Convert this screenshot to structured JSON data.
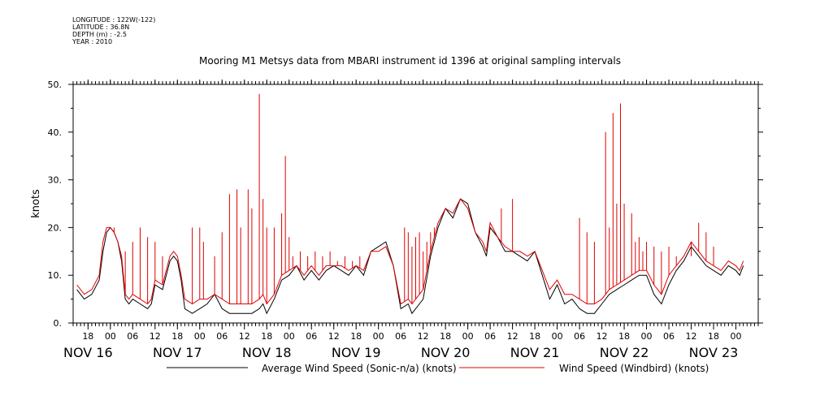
{
  "meta": {
    "longitude": "LONGITUDE : 122W(-122)",
    "latitude": "LATITUDE : 36.8N",
    "depth": "DEPTH (m) : -2.5",
    "year": "YEAR : 2010"
  },
  "chart_data": {
    "type": "line",
    "title": "Mooring M1 Metsys data from MBARI instrument id 1396 at original sampling intervals",
    "ylabel": "knots",
    "xlabel": "",
    "ylim": [
      0,
      50
    ],
    "yticks": [
      0,
      10,
      20,
      30,
      40,
      50
    ],
    "ytick_labels": [
      "0.",
      "10.",
      "20.",
      "30.",
      "40.",
      "50."
    ],
    "xlim_hours": [
      -10,
      174
    ],
    "x_units": "hours after 2010-11-16 00:00",
    "hour_ticks": [
      {
        "h": -6,
        "label": "18"
      },
      {
        "h": 0,
        "label": "00"
      },
      {
        "h": 6,
        "label": "06"
      },
      {
        "h": 12,
        "label": "12"
      },
      {
        "h": 18,
        "label": "18"
      },
      {
        "h": 24,
        "label": "00"
      },
      {
        "h": 30,
        "label": "06"
      },
      {
        "h": 36,
        "label": "12"
      },
      {
        "h": 42,
        "label": "18"
      },
      {
        "h": 48,
        "label": "00"
      },
      {
        "h": 54,
        "label": "06"
      },
      {
        "h": 60,
        "label": "12"
      },
      {
        "h": 66,
        "label": "18"
      },
      {
        "h": 72,
        "label": "00"
      },
      {
        "h": 78,
        "label": "06"
      },
      {
        "h": 84,
        "label": "12"
      },
      {
        "h": 90,
        "label": "18"
      },
      {
        "h": 96,
        "label": "00"
      },
      {
        "h": 102,
        "label": "06"
      },
      {
        "h": 108,
        "label": "12"
      },
      {
        "h": 114,
        "label": "18"
      },
      {
        "h": 120,
        "label": "00"
      },
      {
        "h": 126,
        "label": "06"
      },
      {
        "h": 132,
        "label": "12"
      },
      {
        "h": 138,
        "label": "18"
      },
      {
        "h": 144,
        "label": "00"
      },
      {
        "h": 150,
        "label": "06"
      },
      {
        "h": 156,
        "label": "12"
      },
      {
        "h": 162,
        "label": "18"
      },
      {
        "h": 168,
        "label": "00"
      }
    ],
    "day_labels": [
      {
        "h": -6,
        "label": "NOV 16"
      },
      {
        "h": 18,
        "label": "NOV 17"
      },
      {
        "h": 42,
        "label": "NOV 18"
      },
      {
        "h": 66,
        "label": "NOV 19"
      },
      {
        "h": 90,
        "label": "NOV 20"
      },
      {
        "h": 114,
        "label": "NOV 21"
      },
      {
        "h": 138,
        "label": "NOV 22"
      },
      {
        "h": 162,
        "label": "NOV 23"
      }
    ],
    "series": [
      {
        "name": "Average Wind Speed (Sonic-n/a) (knots)",
        "color": "#000000",
        "x": [
          -9,
          -7,
          -5,
          -3,
          -2,
          -1,
          0,
          1,
          2,
          3,
          4,
          5,
          6,
          8,
          10,
          11,
          12,
          14,
          16,
          17,
          18,
          19,
          20,
          22,
          24,
          26,
          28,
          30,
          32,
          34,
          36,
          38,
          40,
          41,
          42,
          44,
          46,
          48,
          50,
          52,
          54,
          56,
          58,
          60,
          62,
          64,
          66,
          68,
          70,
          72,
          74,
          76,
          78,
          80,
          81,
          82,
          83,
          84,
          86,
          88,
          90,
          92,
          94,
          96,
          98,
          100,
          101,
          102,
          104,
          106,
          108,
          110,
          112,
          114,
          116,
          118,
          120,
          122,
          124,
          126,
          128,
          130,
          132,
          134,
          136,
          138,
          140,
          142,
          144,
          146,
          148,
          150,
          152,
          154,
          156,
          158,
          160,
          162,
          164,
          166,
          168,
          169,
          170
        ],
        "y": [
          7,
          5,
          6,
          9,
          15,
          19,
          20,
          19,
          17,
          13,
          5,
          4,
          5,
          4,
          3,
          4,
          8,
          7,
          13,
          14,
          13,
          9,
          3,
          2,
          3,
          4,
          6,
          3,
          2,
          2,
          2,
          2,
          3,
          4,
          2,
          5,
          9,
          10,
          12,
          9,
          11,
          9,
          11,
          12,
          11,
          10,
          12,
          10,
          15,
          16,
          17,
          12,
          3,
          4,
          2,
          3,
          4,
          5,
          14,
          20,
          24,
          22,
          26,
          25,
          19,
          16,
          14,
          20,
          18,
          15,
          15,
          14,
          13,
          15,
          10,
          5,
          8,
          4,
          5,
          3,
          2,
          2,
          4,
          6,
          7,
          8,
          9,
          10,
          10,
          6,
          4,
          8,
          11,
          13,
          16,
          14,
          12,
          11,
          10,
          12,
          11,
          10,
          12
        ]
      },
      {
        "name": "Wind Speed (Windbird) (knots)",
        "color": "#e00000",
        "x": [
          -9,
          -7,
          -5,
          -3,
          -2,
          -1,
          0,
          1,
          2,
          3,
          4,
          5,
          6,
          8,
          10,
          11,
          12,
          14,
          16,
          17,
          18,
          19,
          20,
          22,
          24,
          26,
          28,
          30,
          32,
          34,
          36,
          38,
          40,
          41,
          42,
          44,
          46,
          48,
          50,
          52,
          54,
          56,
          58,
          60,
          62,
          64,
          66,
          68,
          70,
          72,
          74,
          76,
          78,
          80,
          81,
          82,
          83,
          84,
          86,
          88,
          90,
          92,
          94,
          96,
          98,
          100,
          101,
          102,
          104,
          106,
          108,
          110,
          112,
          114,
          116,
          118,
          120,
          122,
          124,
          126,
          128,
          130,
          132,
          134,
          136,
          138,
          140,
          142,
          144,
          146,
          148,
          150,
          152,
          154,
          156,
          158,
          160,
          162,
          164,
          166,
          168,
          169,
          170
        ],
        "y": [
          8,
          6,
          7,
          10,
          17,
          20,
          20,
          19,
          17,
          14,
          6,
          5,
          6,
          5,
          4,
          5,
          9,
          8,
          14,
          15,
          14,
          10,
          5,
          4,
          5,
          5,
          6,
          5,
          4,
          4,
          4,
          4,
          5,
          6,
          4,
          6,
          10,
          11,
          12,
          10,
          12,
          10,
          12,
          12,
          12,
          11,
          12,
          11,
          15,
          15,
          16,
          12,
          4,
          5,
          4,
          5,
          6,
          7,
          15,
          21,
          24,
          23,
          26,
          24,
          19,
          17,
          15,
          21,
          18,
          16,
          15,
          15,
          14,
          15,
          11,
          7,
          9,
          6,
          6,
          5,
          4,
          4,
          5,
          7,
          8,
          9,
          10,
          11,
          11,
          8,
          6,
          10,
          12,
          14,
          17,
          15,
          13,
          12,
          11,
          13,
          12,
          11,
          13
        ],
        "spikes": [
          {
            "x": 1,
            "y": 20
          },
          {
            "x": 4,
            "y": 15
          },
          {
            "x": 6,
            "y": 17
          },
          {
            "x": 8,
            "y": 20
          },
          {
            "x": 10,
            "y": 18
          },
          {
            "x": 12,
            "y": 17
          },
          {
            "x": 14,
            "y": 14
          },
          {
            "x": 22,
            "y": 20
          },
          {
            "x": 24,
            "y": 20
          },
          {
            "x": 25,
            "y": 17
          },
          {
            "x": 28,
            "y": 14
          },
          {
            "x": 30,
            "y": 19
          },
          {
            "x": 32,
            "y": 27
          },
          {
            "x": 34,
            "y": 28
          },
          {
            "x": 35,
            "y": 20
          },
          {
            "x": 37,
            "y": 28
          },
          {
            "x": 38,
            "y": 24
          },
          {
            "x": 40,
            "y": 48
          },
          {
            "x": 41,
            "y": 26
          },
          {
            "x": 42,
            "y": 20
          },
          {
            "x": 44,
            "y": 20
          },
          {
            "x": 46,
            "y": 23
          },
          {
            "x": 47,
            "y": 35
          },
          {
            "x": 48,
            "y": 18
          },
          {
            "x": 49,
            "y": 14
          },
          {
            "x": 51,
            "y": 15
          },
          {
            "x": 53,
            "y": 14
          },
          {
            "x": 55,
            "y": 15
          },
          {
            "x": 57,
            "y": 14
          },
          {
            "x": 59,
            "y": 15
          },
          {
            "x": 61,
            "y": 13
          },
          {
            "x": 63,
            "y": 14
          },
          {
            "x": 65,
            "y": 13
          },
          {
            "x": 67,
            "y": 14
          },
          {
            "x": 69,
            "y": 13
          },
          {
            "x": 79,
            "y": 20
          },
          {
            "x": 80,
            "y": 19
          },
          {
            "x": 81,
            "y": 16
          },
          {
            "x": 82,
            "y": 18
          },
          {
            "x": 83,
            "y": 19
          },
          {
            "x": 84,
            "y": 15
          },
          {
            "x": 85,
            "y": 17
          },
          {
            "x": 86,
            "y": 19
          },
          {
            "x": 87,
            "y": 20
          },
          {
            "x": 105,
            "y": 24
          },
          {
            "x": 108,
            "y": 26
          },
          {
            "x": 126,
            "y": 22
          },
          {
            "x": 128,
            "y": 19
          },
          {
            "x": 130,
            "y": 17
          },
          {
            "x": 133,
            "y": 40
          },
          {
            "x": 134,
            "y": 20
          },
          {
            "x": 135,
            "y": 44
          },
          {
            "x": 136,
            "y": 25
          },
          {
            "x": 137,
            "y": 46
          },
          {
            "x": 138,
            "y": 25
          },
          {
            "x": 140,
            "y": 23
          },
          {
            "x": 141,
            "y": 17
          },
          {
            "x": 142,
            "y": 18
          },
          {
            "x": 143,
            "y": 15
          },
          {
            "x": 144,
            "y": 17
          },
          {
            "x": 146,
            "y": 16
          },
          {
            "x": 148,
            "y": 15
          },
          {
            "x": 150,
            "y": 16
          },
          {
            "x": 152,
            "y": 14
          },
          {
            "x": 156,
            "y": 14
          },
          {
            "x": 158,
            "y": 21
          },
          {
            "x": 160,
            "y": 19
          },
          {
            "x": 162,
            "y": 16
          }
        ]
      }
    ],
    "grid": false,
    "legend_position": "bottom"
  }
}
